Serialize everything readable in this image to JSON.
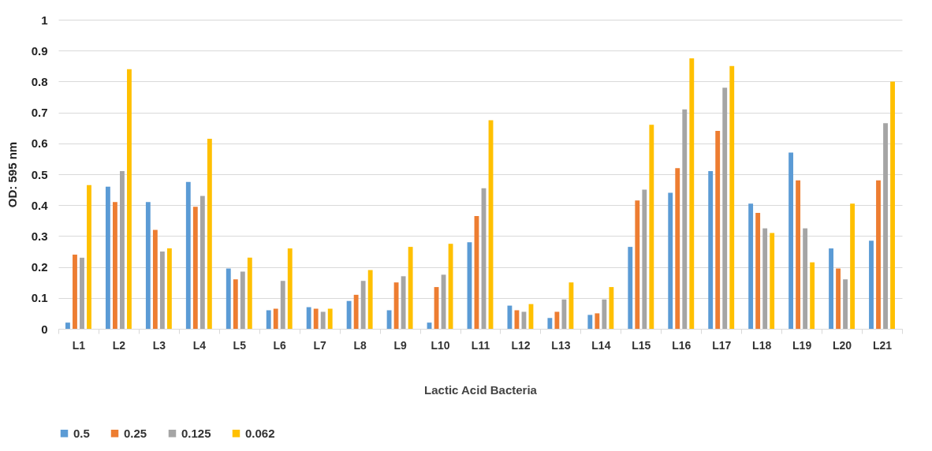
{
  "chart_data": {
    "type": "bar",
    "xlabel": "Lactic Acid Bacteria",
    "ylabel": "OD: 595 nm",
    "categories": [
      "L1",
      "L2",
      "L3",
      "L4",
      "L5",
      "L6",
      "L7",
      "L8",
      "L9",
      "L10",
      "L11",
      "L12",
      "L13",
      "L14",
      "L15",
      "L16",
      "L17",
      "L18",
      "L19",
      "L20",
      "L21"
    ],
    "series": [
      {
        "name": "0.5",
        "color": "#5b9bd5",
        "values": [
          0.02,
          0.46,
          0.41,
          0.475,
          0.195,
          0.06,
          0.07,
          0.09,
          0.06,
          0.02,
          0.28,
          0.075,
          0.035,
          0.045,
          0.265,
          0.44,
          0.51,
          0.405,
          0.57,
          0.26,
          0.285
        ]
      },
      {
        "name": "0.25",
        "color": "#ed7d31",
        "values": [
          0.24,
          0.41,
          0.32,
          0.395,
          0.16,
          0.065,
          0.065,
          0.11,
          0.15,
          0.135,
          0.365,
          0.06,
          0.055,
          0.05,
          0.415,
          0.52,
          0.64,
          0.375,
          0.48,
          0.195,
          0.48
        ]
      },
      {
        "name": "0.125",
        "color": "#a5a5a5",
        "values": [
          0.23,
          0.51,
          0.25,
          0.43,
          0.185,
          0.155,
          0.055,
          0.155,
          0.17,
          0.175,
          0.455,
          0.055,
          0.095,
          0.095,
          0.45,
          0.71,
          0.78,
          0.325,
          0.325,
          0.16,
          0.665
        ]
      },
      {
        "name": "0.062",
        "color": "#ffc000",
        "values": [
          0.465,
          0.84,
          0.26,
          0.615,
          0.23,
          0.26,
          0.065,
          0.19,
          0.265,
          0.275,
          0.675,
          0.08,
          0.15,
          0.135,
          0.66,
          0.875,
          0.85,
          0.31,
          0.215,
          0.405,
          0.8
        ]
      }
    ],
    "ylim": [
      0,
      1
    ],
    "yticks": [
      0,
      0.1,
      0.2,
      0.3,
      0.4,
      0.5,
      0.6,
      0.7,
      0.8,
      0.9,
      1
    ],
    "grid": "y",
    "legend": "bottom"
  }
}
